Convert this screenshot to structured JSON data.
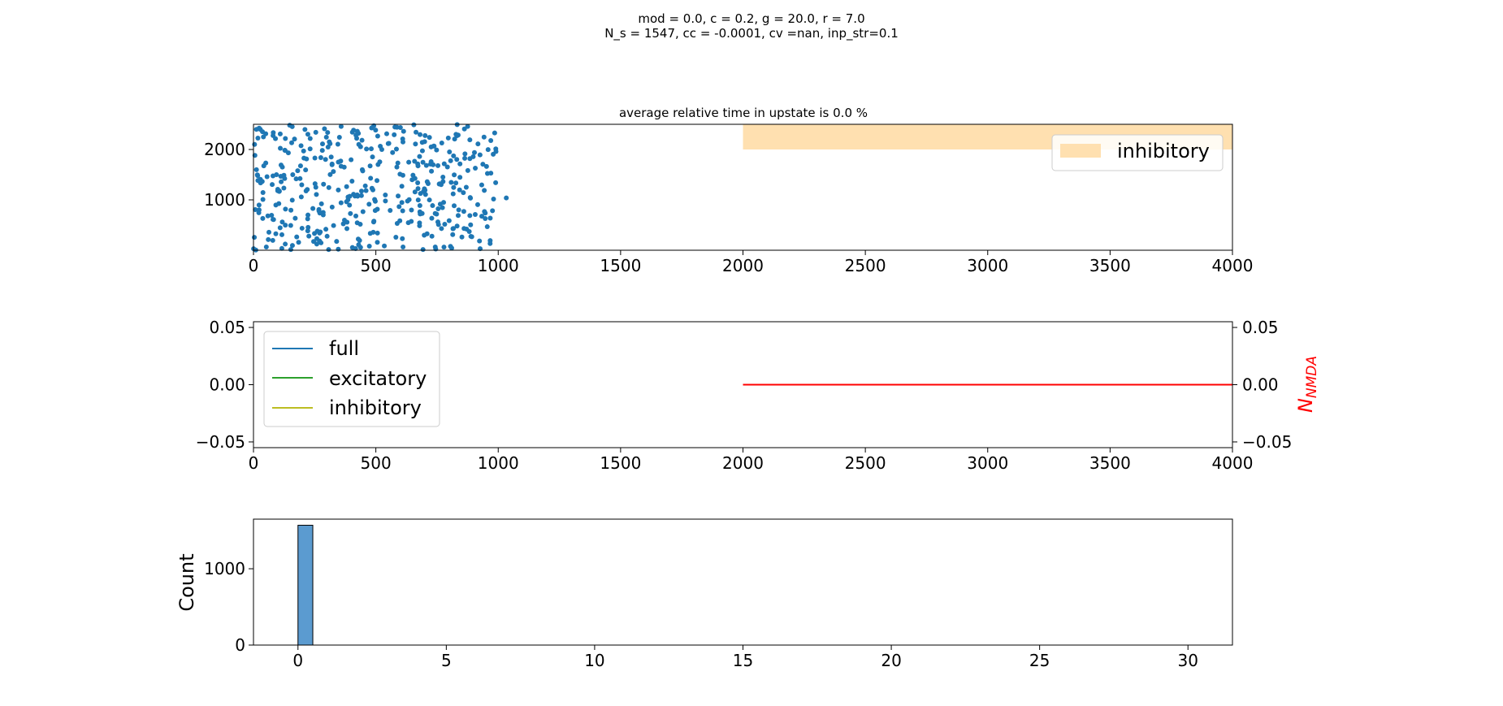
{
  "figure": {
    "suptitle_line1": "mod = 0.0, c = 0.2, g = 20.0, r = 7.0",
    "suptitle_line2": "N_s = 1547, cc = -0.0001, cv =nan, inp_str=0.1"
  },
  "colors": {
    "scatter": "#1f77b4",
    "inhibitory_span": "#ffe0b0",
    "full": "#1f77b4",
    "excitatory": "#2ca02c",
    "inhibitory": "#bcbd22",
    "nmda": "#ff0000",
    "hist": "#5b9bd0"
  },
  "chart_data": [
    {
      "type": "scatter",
      "title": "average relative time in upstate is 0.0 %",
      "xlim": [
        0,
        4000
      ],
      "ylim": [
        0,
        2500
      ],
      "xticks": [
        0,
        500,
        1000,
        1500,
        2000,
        2500,
        3000,
        3500,
        4000
      ],
      "yticks": [
        1000,
        2000
      ],
      "x_range_of_points": [
        0,
        1060
      ],
      "y_range_of_points": [
        0,
        2500
      ],
      "num_points_approx": 420,
      "shaded_region": {
        "label": "inhibitory",
        "x": [
          2000,
          4000
        ],
        "y": [
          2000,
          2500
        ]
      },
      "legend": {
        "entries": [
          "inhibitory"
        ],
        "placement": "upper right"
      }
    },
    {
      "type": "line",
      "xlim": [
        0,
        4000
      ],
      "ylim": [
        -0.055,
        0.055
      ],
      "xticks": [
        0,
        500,
        1000,
        1500,
        2000,
        2500,
        3000,
        3500,
        4000
      ],
      "yticks": [
        -0.05,
        0.0,
        0.05
      ],
      "ytick_labels": [
        "−0.05",
        "0.00",
        "0.05"
      ],
      "series": [
        {
          "name": "full",
          "x": [],
          "y": []
        },
        {
          "name": "excitatory",
          "x": [],
          "y": []
        },
        {
          "name": "inhibitory",
          "x": [],
          "y": []
        }
      ],
      "secondary_series": {
        "x": [
          2000,
          4000
        ],
        "y": [
          0.0,
          0.0
        ]
      },
      "secondary_ylabel": "N",
      "secondary_ylabel_sub": "NMDA",
      "legend": {
        "entries": [
          "full",
          "excitatory",
          "inhibitory"
        ],
        "placement": "upper left"
      }
    },
    {
      "type": "bar",
      "ylabel": "Count",
      "xlim": [
        -1.5,
        31.5
      ],
      "ylim": [
        0,
        1650
      ],
      "xticks": [
        0,
        5,
        10,
        15,
        20,
        25,
        30
      ],
      "yticks": [
        0,
        1000
      ],
      "bins": [
        {
          "x0": 0,
          "x1": 0.5,
          "count": 1570
        }
      ]
    }
  ]
}
